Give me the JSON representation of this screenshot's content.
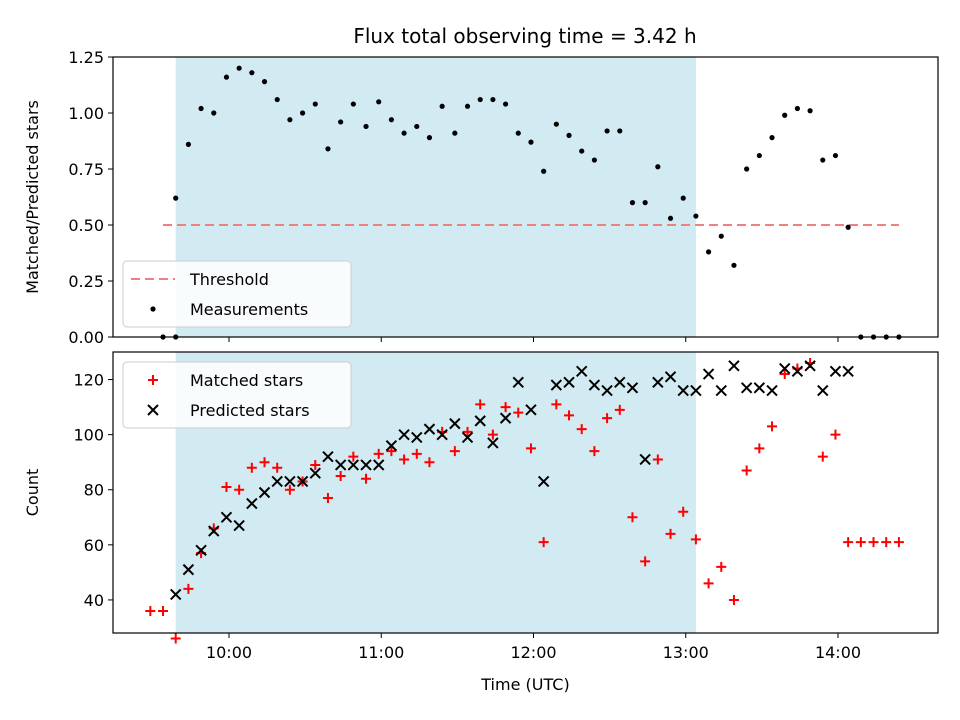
{
  "chart_data": [
    {
      "type": "scatter",
      "title": "Flux total observing time = 3.42 h",
      "xlabel": "",
      "ylabel": "Matched/Predicted stars",
      "ylim": [
        0,
        1.25
      ],
      "yticks": [
        "0.00",
        "0.25",
        "0.50",
        "0.75",
        "1.00",
        "1.25"
      ],
      "shaded_region": {
        "x_start": "09:39",
        "x_end": "13:04",
        "color": "#add8e6"
      },
      "legend": {
        "position": "lower-left",
        "entries": [
          "Threshold",
          "Measurements"
        ]
      },
      "series": [
        {
          "name": "Threshold",
          "kind": "dashed-line",
          "color": "#f08080",
          "x": [
            "09:34",
            "14:24"
          ],
          "y": [
            0.5,
            0.5
          ]
        },
        {
          "name": "Measurements",
          "kind": "dots",
          "color": "#000000",
          "x": [
            "09:34",
            "09:39",
            "09:39",
            "09:44",
            "09:49",
            "09:54",
            "09:59",
            "10:04",
            "10:09",
            "10:14",
            "10:19",
            "10:24",
            "10:29",
            "10:34",
            "10:39",
            "10:44",
            "10:49",
            "10:54",
            "10:59",
            "11:04",
            "11:09",
            "11:14",
            "11:19",
            "11:24",
            "11:29",
            "11:34",
            "11:39",
            "11:44",
            "11:49",
            "11:54",
            "11:59",
            "12:04",
            "12:09",
            "12:14",
            "12:19",
            "12:24",
            "12:29",
            "12:34",
            "12:39",
            "12:44",
            "12:49",
            "12:54",
            "12:59",
            "13:04",
            "13:09",
            "13:14",
            "13:19",
            "13:24",
            "13:29",
            "13:34",
            "13:39",
            "13:44",
            "13:49",
            "13:54",
            "13:59",
            "14:04",
            "14:09",
            "14:14",
            "14:19",
            "14:24"
          ],
          "y": [
            0.0,
            0.0,
            0.62,
            0.86,
            1.02,
            1.0,
            1.16,
            1.2,
            1.18,
            1.14,
            1.06,
            0.97,
            1.0,
            1.04,
            0.84,
            0.96,
            1.04,
            0.94,
            1.05,
            0.97,
            0.91,
            0.94,
            0.89,
            1.03,
            0.91,
            1.03,
            1.06,
            1.06,
            1.04,
            0.91,
            0.87,
            0.74,
            0.95,
            0.9,
            0.83,
            0.79,
            0.92,
            0.92,
            0.6,
            0.6,
            0.76,
            0.53,
            0.62,
            0.54,
            0.38,
            0.45,
            0.32,
            0.75,
            0.81,
            0.89,
            0.99,
            1.02,
            1.01,
            0.79,
            0.81,
            0.49,
            0.0,
            0.0,
            0.0,
            0.0
          ]
        }
      ]
    },
    {
      "type": "scatter",
      "title": "",
      "xlabel": "Time (UTC)",
      "ylabel": "Count",
      "ylim": [
        28,
        130
      ],
      "yticks": [
        "40",
        "60",
        "80",
        "100",
        "120"
      ],
      "xticks": [
        "10:00",
        "11:00",
        "12:00",
        "13:00",
        "14:00"
      ],
      "shaded_region": {
        "x_start": "09:39",
        "x_end": "13:04",
        "color": "#add8e6"
      },
      "legend": {
        "position": "upper-left",
        "entries": [
          "Matched stars",
          "Predicted stars"
        ]
      },
      "series": [
        {
          "name": "Matched stars",
          "marker": "+",
          "color": "#ff0000",
          "x": [
            "09:29",
            "09:34",
            "09:39",
            "09:44",
            "09:49",
            "09:54",
            "09:59",
            "10:04",
            "10:09",
            "10:14",
            "10:19",
            "10:24",
            "10:29",
            "10:34",
            "10:39",
            "10:44",
            "10:49",
            "10:54",
            "10:59",
            "11:04",
            "11:09",
            "11:14",
            "11:19",
            "11:24",
            "11:29",
            "11:34",
            "11:39",
            "11:44",
            "11:49",
            "11:54",
            "11:59",
            "12:04",
            "12:09",
            "12:14",
            "12:19",
            "12:24",
            "12:29",
            "12:34",
            "12:39",
            "12:44",
            "12:49",
            "12:54",
            "12:59",
            "13:04",
            "13:09",
            "13:14",
            "13:19",
            "13:24",
            "13:29",
            "13:34",
            "13:39",
            "13:44",
            "13:49",
            "13:54",
            "13:59",
            "14:04",
            "14:09",
            "14:14",
            "14:19",
            "14:24"
          ],
          "y": [
            36,
            36,
            26,
            44,
            57,
            66,
            81,
            80,
            88,
            90,
            88,
            80,
            83,
            89,
            77,
            85,
            92,
            84,
            93,
            94,
            91,
            93,
            90,
            101,
            94,
            101,
            111,
            100,
            110,
            108,
            95,
            61,
            111,
            107,
            102,
            94,
            106,
            109,
            70,
            54,
            91,
            64,
            72,
            62,
            46,
            52,
            40,
            87,
            95,
            103,
            122,
            124,
            126,
            92,
            100,
            61,
            61,
            61,
            61,
            61
          ]
        },
        {
          "name": "Predicted stars",
          "marker": "x",
          "color": "#000000",
          "x": [
            "09:39",
            "09:44",
            "09:49",
            "09:54",
            "09:59",
            "10:04",
            "10:09",
            "10:14",
            "10:19",
            "10:24",
            "10:29",
            "10:34",
            "10:39",
            "10:44",
            "10:49",
            "10:54",
            "10:59",
            "11:04",
            "11:09",
            "11:14",
            "11:19",
            "11:24",
            "11:29",
            "11:34",
            "11:39",
            "11:44",
            "11:49",
            "11:54",
            "11:59",
            "12:04",
            "12:09",
            "12:14",
            "12:19",
            "12:24",
            "12:29",
            "12:34",
            "12:39",
            "12:44",
            "12:49",
            "12:54",
            "12:59",
            "13:04",
            "13:09",
            "13:14",
            "13:19",
            "13:24",
            "13:29",
            "13:34",
            "13:39",
            "13:44",
            "13:49",
            "13:54",
            "13:59",
            "14:04"
          ],
          "y": [
            42,
            51,
            58,
            65,
            70,
            67,
            75,
            79,
            83,
            83,
            83,
            86,
            92,
            89,
            89,
            89,
            89,
            96,
            100,
            99,
            102,
            100,
            104,
            99,
            105,
            97,
            106,
            119,
            109,
            83,
            118,
            119,
            123,
            118,
            116,
            119,
            117,
            91,
            119,
            121,
            116,
            116,
            122,
            116,
            125,
            117,
            117,
            116,
            124,
            123,
            125,
            116,
            123,
            123
          ]
        }
      ]
    }
  ]
}
